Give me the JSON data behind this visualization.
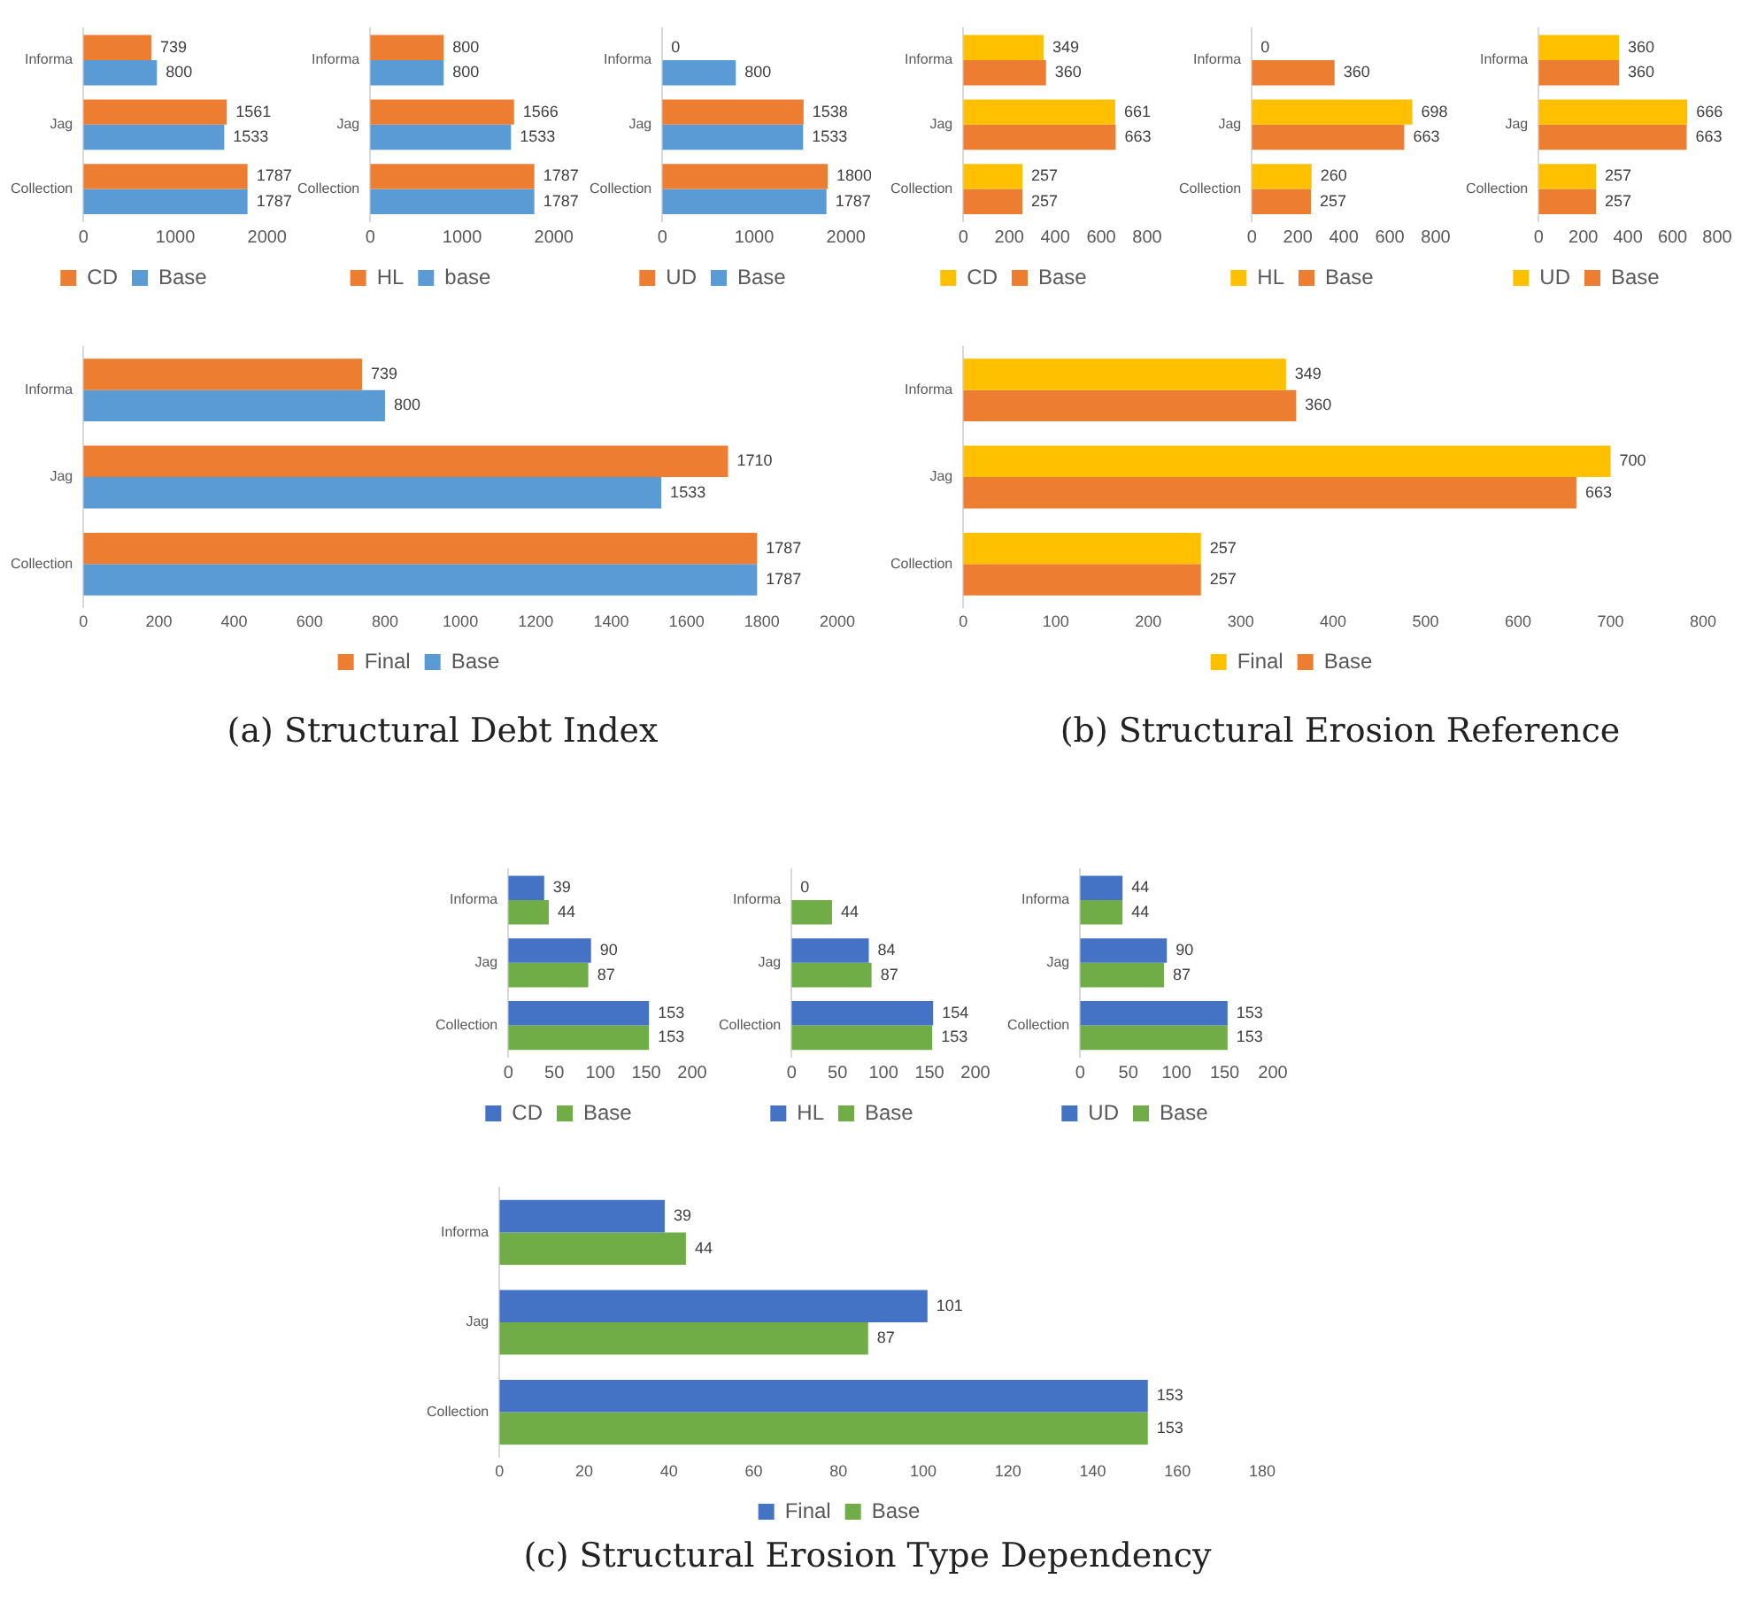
{
  "chart_data": [
    {
      "type": "bar",
      "orientation": "horizontal",
      "categories": [
        "Informa",
        "Jag",
        "Collection"
      ],
      "series": [
        {
          "name": "CD",
          "color": "#ed7d31",
          "values": [
            739,
            1561,
            1787
          ]
        },
        {
          "name": "Base",
          "color": "#5b9bd5",
          "values": [
            800,
            1533,
            1787
          ]
        }
      ],
      "xlim": [
        0,
        2000
      ],
      "xticks": [
        0,
        1000,
        2000
      ],
      "data_labels": true,
      "legend": "bottom"
    },
    {
      "type": "bar",
      "orientation": "horizontal",
      "categories": [
        "Informa",
        "Jag",
        "Collection"
      ],
      "series": [
        {
          "name": "HL",
          "color": "#ed7d31",
          "values": [
            800,
            1566,
            1787
          ]
        },
        {
          "name": "base",
          "color": "#5b9bd5",
          "values": [
            800,
            1533,
            1787
          ]
        }
      ],
      "xlim": [
        0,
        2000
      ],
      "xticks": [
        0,
        1000,
        2000
      ],
      "data_labels": true,
      "legend": "bottom"
    },
    {
      "type": "bar",
      "orientation": "horizontal",
      "categories": [
        "Informa",
        "Jag",
        "Collection"
      ],
      "series": [
        {
          "name": "UD",
          "color": "#ed7d31",
          "values": [
            0,
            1538,
            1800
          ]
        },
        {
          "name": "Base",
          "color": "#5b9bd5",
          "values": [
            800,
            1533,
            1787
          ]
        }
      ],
      "xlim": [
        0,
        2000
      ],
      "xticks": [
        0,
        1000,
        2000
      ],
      "data_labels": true,
      "legend": "bottom"
    },
    {
      "type": "bar",
      "orientation": "horizontal",
      "categories": [
        "Informa",
        "Jag",
        "Collection"
      ],
      "series": [
        {
          "name": "CD",
          "color": "#ffc000",
          "values": [
            349,
            661,
            257
          ]
        },
        {
          "name": "Base",
          "color": "#ed7d31",
          "values": [
            360,
            663,
            257
          ]
        }
      ],
      "xlim": [
        0,
        800
      ],
      "xticks": [
        0,
        200,
        400,
        600,
        800
      ],
      "data_labels": true,
      "legend": "bottom"
    },
    {
      "type": "bar",
      "orientation": "horizontal",
      "categories": [
        "Informa",
        "Jag",
        "Collection"
      ],
      "series": [
        {
          "name": "HL",
          "color": "#ffc000",
          "values": [
            0,
            698,
            260
          ]
        },
        {
          "name": "Base",
          "color": "#ed7d31",
          "values": [
            360,
            663,
            257
          ]
        }
      ],
      "xlim": [
        0,
        800
      ],
      "xticks": [
        0,
        200,
        400,
        600,
        800
      ],
      "data_labels": true,
      "legend": "bottom"
    },
    {
      "type": "bar",
      "orientation": "horizontal",
      "categories": [
        "Informa",
        "Jag",
        "Collection"
      ],
      "series": [
        {
          "name": "UD",
          "color": "#ffc000",
          "values": [
            360,
            666,
            257
          ]
        },
        {
          "name": "Base",
          "color": "#ed7d31",
          "values": [
            360,
            663,
            257
          ]
        }
      ],
      "xlim": [
        0,
        800
      ],
      "xticks": [
        0,
        200,
        400,
        600,
        800
      ],
      "data_labels": true,
      "legend": "bottom"
    },
    {
      "type": "bar",
      "orientation": "horizontal",
      "categories": [
        "Informa",
        "Jag",
        "Collection"
      ],
      "series": [
        {
          "name": "Final",
          "color": "#ed7d31",
          "values": [
            739,
            1710,
            1787
          ]
        },
        {
          "name": "Base",
          "color": "#5b9bd5",
          "values": [
            800,
            1533,
            1787
          ]
        }
      ],
      "xlim": [
        0,
        2000
      ],
      "xticks": [
        0,
        200,
        400,
        600,
        800,
        1000,
        1200,
        1400,
        1600,
        1800,
        2000
      ],
      "data_labels": true,
      "legend": "bottom",
      "annotations": [
        "(a) Structural Debt Index"
      ]
    },
    {
      "type": "bar",
      "orientation": "horizontal",
      "categories": [
        "Informa",
        "Jag",
        "Collection"
      ],
      "series": [
        {
          "name": "Final",
          "color": "#ffc000",
          "values": [
            349,
            700,
            257
          ]
        },
        {
          "name": "Base",
          "color": "#ed7d31",
          "values": [
            360,
            663,
            257
          ]
        }
      ],
      "xlim": [
        0,
        800
      ],
      "xticks": [
        0,
        100,
        200,
        300,
        400,
        500,
        600,
        700,
        800
      ],
      "data_labels": true,
      "legend": "bottom",
      "annotations": [
        "(b) Structural Erosion Reference"
      ]
    },
    {
      "type": "bar",
      "orientation": "horizontal",
      "categories": [
        "Informa",
        "Jag",
        "Collection"
      ],
      "series": [
        {
          "name": "CD",
          "color": "#4472c4",
          "values": [
            39,
            90,
            153
          ]
        },
        {
          "name": "Base",
          "color": "#70ad47",
          "values": [
            44,
            87,
            153
          ]
        }
      ],
      "xlim": [
        0,
        200
      ],
      "xticks": [
        0,
        50,
        100,
        150,
        200
      ],
      "data_labels": true,
      "legend": "bottom"
    },
    {
      "type": "bar",
      "orientation": "horizontal",
      "categories": [
        "Informa",
        "Jag",
        "Collection"
      ],
      "series": [
        {
          "name": "HL",
          "color": "#4472c4",
          "values": [
            0,
            84,
            154
          ]
        },
        {
          "name": "Base",
          "color": "#70ad47",
          "values": [
            44,
            87,
            153
          ]
        }
      ],
      "xlim": [
        0,
        200
      ],
      "xticks": [
        0,
        50,
        100,
        150,
        200
      ],
      "data_labels": true,
      "legend": "bottom"
    },
    {
      "type": "bar",
      "orientation": "horizontal",
      "categories": [
        "Informa",
        "Jag",
        "Collection"
      ],
      "series": [
        {
          "name": "UD",
          "color": "#4472c4",
          "values": [
            44,
            90,
            153
          ]
        },
        {
          "name": "Base",
          "color": "#70ad47",
          "values": [
            44,
            87,
            153
          ]
        }
      ],
      "xlim": [
        0,
        200
      ],
      "xticks": [
        0,
        50,
        100,
        150,
        200
      ],
      "data_labels": true,
      "legend": "bottom"
    },
    {
      "type": "bar",
      "orientation": "horizontal",
      "categories": [
        "Informa",
        "Jag",
        "Collection"
      ],
      "series": [
        {
          "name": "Final",
          "color": "#4472c4",
          "values": [
            39,
            101,
            153
          ]
        },
        {
          "name": "Base",
          "color": "#70ad47",
          "values": [
            44,
            87,
            153
          ]
        }
      ],
      "xlim": [
        0,
        180
      ],
      "xticks": [
        0,
        20,
        40,
        60,
        80,
        100,
        120,
        140,
        160,
        180
      ],
      "data_labels": true,
      "legend": "bottom",
      "annotations": [
        "(c) Structural Erosion Type Dependency"
      ]
    }
  ]
}
